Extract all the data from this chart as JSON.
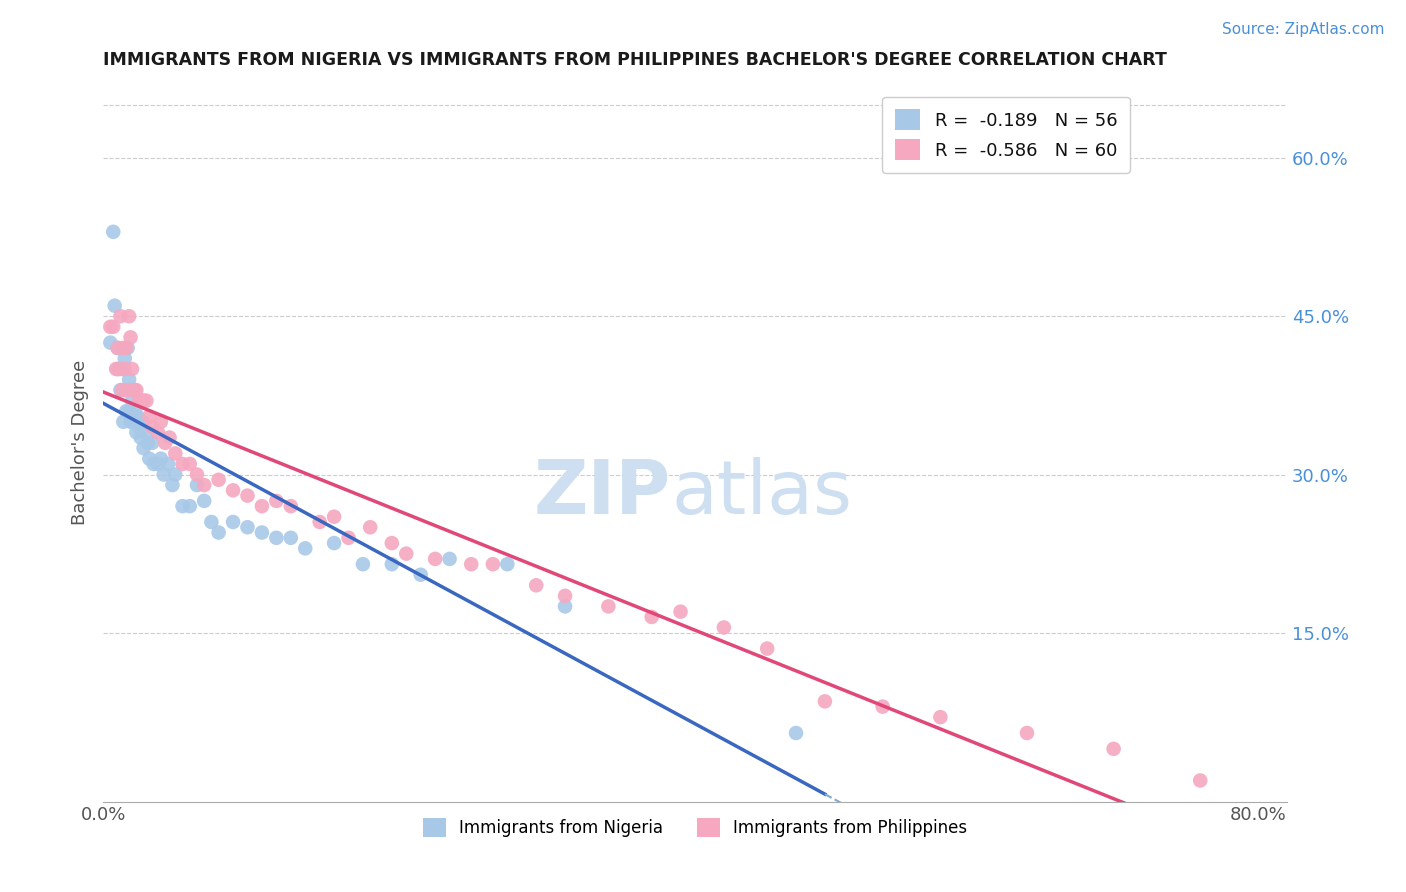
{
  "title": "IMMIGRANTS FROM NIGERIA VS IMMIGRANTS FROM PHILIPPINES BACHELOR'S DEGREE CORRELATION CHART",
  "source_text": "Source: ZipAtlas.com",
  "ylabel": "Bachelor's Degree",
  "right_ytick_labels": [
    "60.0%",
    "45.0%",
    "30.0%",
    "15.0%"
  ],
  "right_ytick_values": [
    0.6,
    0.45,
    0.3,
    0.15
  ],
  "xlim": [
    0.0,
    0.82
  ],
  "ylim": [
    -0.01,
    0.67
  ],
  "xtick_values": [
    0.0,
    0.1,
    0.2,
    0.3,
    0.4,
    0.5,
    0.6,
    0.7,
    0.8
  ],
  "xtick_labels": [
    "0.0%",
    "",
    "",
    "",
    "",
    "",
    "",
    "",
    "80.0%"
  ],
  "legend_entry1": "R =  -0.189   N = 56",
  "legend_entry2": "R =  -0.586   N = 60",
  "series1_color": "#a8c8e8",
  "series2_color": "#f5a8c0",
  "line1_color": "#3a68c0",
  "line2_color": "#e04878",
  "dashed_color": "#7aaad8",
  "grid_color": "#cccccc",
  "watermark_color": "#cddff0",
  "nigeria_x": [
    0.005,
    0.007,
    0.008,
    0.01,
    0.01,
    0.012,
    0.013,
    0.014,
    0.015,
    0.015,
    0.016,
    0.017,
    0.018,
    0.018,
    0.019,
    0.02,
    0.02,
    0.021,
    0.022,
    0.023,
    0.024,
    0.025,
    0.026,
    0.027,
    0.028,
    0.03,
    0.031,
    0.032,
    0.034,
    0.035,
    0.038,
    0.04,
    0.042,
    0.045,
    0.048,
    0.05,
    0.055,
    0.06,
    0.065,
    0.07,
    0.075,
    0.08,
    0.09,
    0.1,
    0.11,
    0.12,
    0.13,
    0.14,
    0.16,
    0.18,
    0.2,
    0.22,
    0.24,
    0.28,
    0.32,
    0.48
  ],
  "nigeria_y": [
    0.425,
    0.53,
    0.46,
    0.42,
    0.4,
    0.38,
    0.4,
    0.35,
    0.41,
    0.38,
    0.36,
    0.42,
    0.39,
    0.36,
    0.35,
    0.37,
    0.35,
    0.38,
    0.36,
    0.34,
    0.355,
    0.345,
    0.335,
    0.35,
    0.325,
    0.34,
    0.33,
    0.315,
    0.33,
    0.31,
    0.31,
    0.315,
    0.3,
    0.31,
    0.29,
    0.3,
    0.27,
    0.27,
    0.29,
    0.275,
    0.255,
    0.245,
    0.255,
    0.25,
    0.245,
    0.24,
    0.24,
    0.23,
    0.235,
    0.215,
    0.215,
    0.205,
    0.22,
    0.215,
    0.175,
    0.055
  ],
  "philippines_x": [
    0.005,
    0.007,
    0.009,
    0.01,
    0.011,
    0.012,
    0.013,
    0.014,
    0.015,
    0.016,
    0.017,
    0.018,
    0.019,
    0.02,
    0.021,
    0.022,
    0.023,
    0.025,
    0.027,
    0.028,
    0.03,
    0.032,
    0.034,
    0.038,
    0.04,
    0.043,
    0.046,
    0.05,
    0.055,
    0.06,
    0.065,
    0.07,
    0.08,
    0.09,
    0.1,
    0.11,
    0.12,
    0.13,
    0.15,
    0.16,
    0.17,
    0.185,
    0.2,
    0.21,
    0.23,
    0.255,
    0.27,
    0.3,
    0.32,
    0.35,
    0.38,
    0.4,
    0.43,
    0.46,
    0.5,
    0.54,
    0.58,
    0.64,
    0.7,
    0.76
  ],
  "philippines_y": [
    0.44,
    0.44,
    0.4,
    0.42,
    0.4,
    0.45,
    0.38,
    0.42,
    0.4,
    0.42,
    0.38,
    0.45,
    0.43,
    0.4,
    0.38,
    0.38,
    0.38,
    0.37,
    0.37,
    0.37,
    0.37,
    0.355,
    0.345,
    0.34,
    0.35,
    0.33,
    0.335,
    0.32,
    0.31,
    0.31,
    0.3,
    0.29,
    0.295,
    0.285,
    0.28,
    0.27,
    0.275,
    0.27,
    0.255,
    0.26,
    0.24,
    0.25,
    0.235,
    0.225,
    0.22,
    0.215,
    0.215,
    0.195,
    0.185,
    0.175,
    0.165,
    0.17,
    0.155,
    0.135,
    0.085,
    0.08,
    0.07,
    0.055,
    0.04,
    0.01
  ],
  "line1_x_start": 0.0,
  "line1_x_solid_end": 0.5,
  "line1_x_dashed_end": 0.8,
  "line2_x_start": 0.0,
  "line2_x_end": 0.8
}
